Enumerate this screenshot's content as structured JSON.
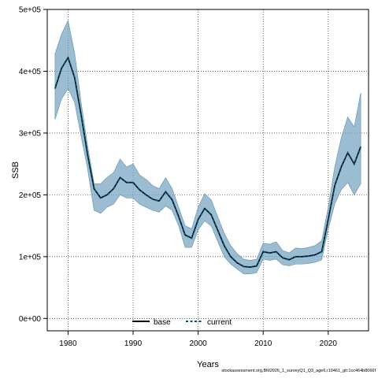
{
  "chart_data": {
    "type": "line",
    "title": "",
    "xlabel": "Years",
    "ylabel": "SSB",
    "xlim": [
      1976.8,
      2026.2
    ],
    "ylim": [
      -20000,
      500000
    ],
    "x_ticks": [
      1980,
      1990,
      2000,
      2010,
      2020
    ],
    "y_ticks": [
      0,
      100000,
      200000,
      300000,
      400000,
      500000
    ],
    "y_tick_labels": [
      "0e+00",
      "1e+05",
      "2e+05",
      "3e+05",
      "4e+05",
      "5e+05"
    ],
    "grid": true,
    "legend_position": "bottom",
    "colors": {
      "band": "#7aa6c2",
      "band_edge": "#5f8faf",
      "base": "#000000",
      "current": "#00506e"
    },
    "x": [
      1978,
      1979,
      1980,
      1981,
      1982,
      1983,
      1984,
      1985,
      1986,
      1987,
      1988,
      1989,
      1990,
      1991,
      1992,
      1993,
      1994,
      1995,
      1996,
      1997,
      1998,
      1999,
      2000,
      2001,
      2002,
      2003,
      2004,
      2005,
      2006,
      2007,
      2008,
      2009,
      2010,
      2011,
      2012,
      2013,
      2014,
      2015,
      2016,
      2017,
      2018,
      2019,
      2020,
      2021,
      2022,
      2023,
      2024,
      2025
    ],
    "series": [
      {
        "name": "base",
        "values": [
          372000,
          405000,
          422000,
          390000,
          330000,
          265000,
          210000,
          195000,
          200000,
          210000,
          228000,
          220000,
          220000,
          208000,
          200000,
          193000,
          190000,
          205000,
          192000,
          165000,
          135000,
          130000,
          160000,
          178000,
          168000,
          143000,
          118000,
          100000,
          90000,
          84000,
          83000,
          85000,
          108000,
          106000,
          108000,
          98000,
          95000,
          100000,
          100000,
          101000,
          103000,
          108000,
          160000,
          215000,
          245000,
          268000,
          250000,
          278000
        ]
      },
      {
        "name": "current",
        "values": [
          372000,
          405000,
          422000,
          390000,
          330000,
          265000,
          210000,
          195000,
          200000,
          210000,
          228000,
          220000,
          220000,
          208000,
          200000,
          193000,
          190000,
          205000,
          192000,
          165000,
          135000,
          130000,
          160000,
          178000,
          168000,
          143000,
          118000,
          100000,
          90000,
          84000,
          83000,
          85000,
          108000,
          106000,
          108000,
          98000,
          95000,
          100000,
          100000,
          101000,
          103000,
          108000,
          160000,
          215000,
          245000,
          268000,
          250000,
          278000
        ]
      }
    ],
    "band": {
      "upper": [
        428000,
        460000,
        482000,
        430000,
        350000,
        280000,
        218000,
        218000,
        228000,
        236000,
        258000,
        245000,
        250000,
        232000,
        225000,
        215000,
        210000,
        228000,
        210000,
        180000,
        150000,
        145000,
        180000,
        202000,
        192000,
        165000,
        138000,
        118000,
        105000,
        96000,
        94000,
        96000,
        122000,
        120000,
        124000,
        110000,
        106000,
        114000,
        113000,
        115000,
        118000,
        126000,
        180000,
        245000,
        292000,
        326000,
        310000,
        365000
      ],
      "lower": [
        322000,
        355000,
        372000,
        350000,
        295000,
        242000,
        175000,
        170000,
        180000,
        185000,
        200000,
        195000,
        195000,
        185000,
        180000,
        175000,
        172000,
        182000,
        175000,
        150000,
        115000,
        115000,
        143000,
        158000,
        150000,
        125000,
        100000,
        88000,
        80000,
        72000,
        72000,
        74000,
        96000,
        94000,
        96000,
        87000,
        85000,
        88000,
        88000,
        89000,
        91000,
        95000,
        144000,
        185000,
        208000,
        220000,
        200000,
        218000
      ]
    }
  },
  "legend": {
    "base_label": "base",
    "current_label": "current"
  },
  "footnote": "stockassessment.org,BM2026_1_surveyQ1_Q3_age6,r19461_git:1cc464b8066f"
}
